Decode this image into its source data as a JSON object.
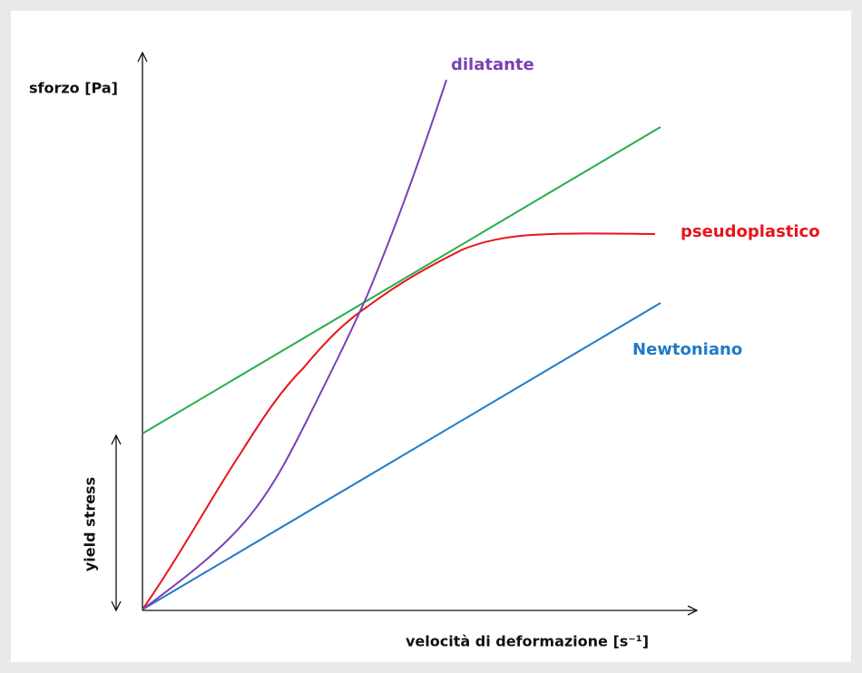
{
  "axes": {
    "y_label": "sforzo [Pa]",
    "x_label": "velocità di deformazione [s⁻¹]"
  },
  "curves": {
    "dilatante": "dilatante",
    "pseudoplastico": "pseudoplastico",
    "newtoniano": "Newtoniano"
  },
  "yield_stress": "yield stress"
}
